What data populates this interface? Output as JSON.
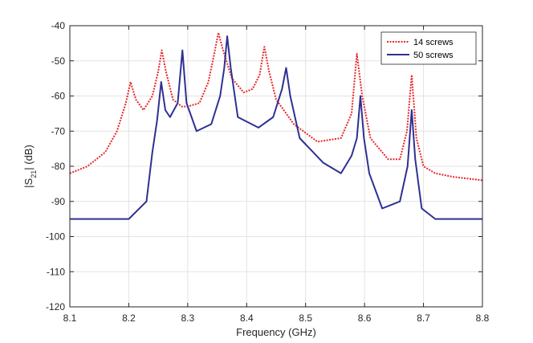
{
  "chart_data": {
    "type": "line",
    "title": "",
    "xlabel": "Frequency (GHz)",
    "ylabel_parts": {
      "pre": "|S",
      "sub": "21",
      "post": "| (dB)"
    },
    "xlim": [
      8.1,
      8.8
    ],
    "ylim": [
      -120,
      -40
    ],
    "xticks": [
      8.1,
      8.2,
      8.3,
      8.4,
      8.5,
      8.6,
      8.7,
      8.8
    ],
    "xtick_labels": [
      "8.1",
      "8.2",
      "8.3",
      "8.4",
      "8.5",
      "8.6",
      "8.7",
      "8.8"
    ],
    "yticks": [
      -120,
      -110,
      -100,
      -90,
      -80,
      -70,
      -60,
      -50,
      -40
    ],
    "ytick_labels": [
      "-120",
      "-110",
      "-100",
      "-90",
      "-80",
      "-70",
      "-60",
      "-50",
      "-40"
    ],
    "grid": true,
    "legend_position": "top-right",
    "series": [
      {
        "name": "14 screws",
        "color": "#e8262b",
        "style": "dotted",
        "x": [
          8.1,
          8.13,
          8.16,
          8.18,
          8.195,
          8.203,
          8.212,
          8.225,
          8.24,
          8.25,
          8.256,
          8.263,
          8.275,
          8.29,
          8.3,
          8.32,
          8.335,
          8.345,
          8.352,
          8.36,
          8.375,
          8.395,
          8.41,
          8.422,
          8.43,
          8.438,
          8.45,
          8.48,
          8.52,
          8.56,
          8.578,
          8.587,
          8.596,
          8.61,
          8.64,
          8.66,
          8.672,
          8.68,
          8.688,
          8.7,
          8.72,
          8.75,
          8.8
        ],
        "values": [
          -82,
          -80,
          -76,
          -70,
          -62,
          -56,
          -61,
          -64,
          -60,
          -53,
          -47,
          -53,
          -61,
          -63,
          -63,
          -62,
          -56,
          -48,
          -42,
          -47,
          -55,
          -59,
          -58,
          -54,
          -46,
          -53,
          -61,
          -68,
          -73,
          -72,
          -65,
          -48,
          -60,
          -72,
          -78,
          -78,
          -70,
          -54,
          -72,
          -80,
          -82,
          -83,
          -84
        ]
      },
      {
        "name": "50 screws",
        "color": "#2e3192",
        "style": "solid",
        "x": [
          8.1,
          8.15,
          8.2,
          8.23,
          8.24,
          8.248,
          8.255,
          8.262,
          8.27,
          8.283,
          8.291,
          8.298,
          8.315,
          8.34,
          8.355,
          8.362,
          8.367,
          8.373,
          8.385,
          8.42,
          8.445,
          8.46,
          8.467,
          8.474,
          8.49,
          8.53,
          8.56,
          8.578,
          8.587,
          8.593,
          8.599,
          8.608,
          8.63,
          8.66,
          8.673,
          8.68,
          8.686,
          8.697,
          8.72,
          8.76,
          8.8
        ],
        "values": [
          -95,
          -95,
          -95,
          -90,
          -76,
          -67,
          -56,
          -64,
          -66,
          -62,
          -47,
          -62,
          -70,
          -68,
          -60,
          -52,
          -43,
          -52,
          -66,
          -69,
          -66,
          -58,
          -52,
          -60,
          -72,
          -79,
          -82,
          -77,
          -72,
          -60,
          -72,
          -82,
          -92,
          -90,
          -80,
          -64,
          -78,
          -92,
          -95,
          -95,
          -95
        ]
      }
    ]
  }
}
